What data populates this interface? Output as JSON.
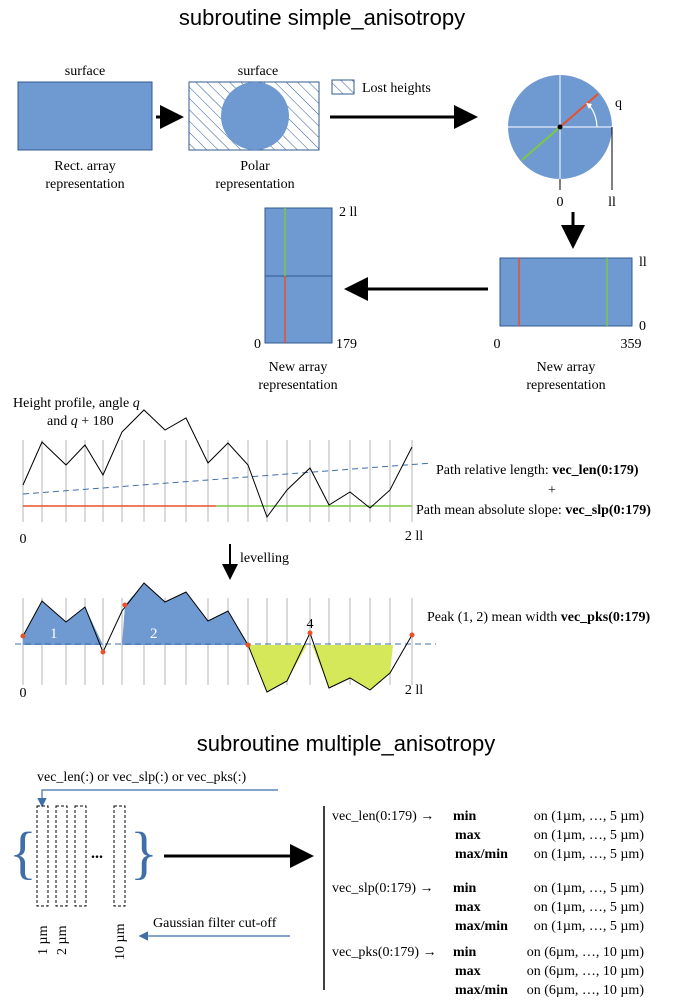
{
  "top_title": "subroutine simple_anisotropy",
  "surface_label_1": "surface",
  "surface_label_2": "surface",
  "rect_array_caption": [
    "Rect. array",
    "representation"
  ],
  "polar_caption": [
    "Polar",
    "representation"
  ],
  "lost_heights_label": "Lost heights",
  "circle": {
    "angle_label": "q",
    "zero_label": "0",
    "ll_label": "ll"
  },
  "new_array_left": {
    "top_label": "2 ll",
    "bottom_label": "0",
    "right_label": "179",
    "caption": [
      "New array",
      "representation"
    ]
  },
  "new_array_right": {
    "top_label": "ll",
    "bottom_label": "0",
    "left_label": "0",
    "right_label": "359",
    "caption": [
      "New array",
      "representation"
    ]
  },
  "profile": {
    "caption_line1": "Height profile, angle",
    "caption_q1": "q",
    "caption_and": "and",
    "caption_q2": "q",
    "caption_plus": "+ 180",
    "x_start": "0",
    "x_end": "2 ll",
    "path_len_label": "Path relative length:",
    "path_len_code": "vec_len(0:179)",
    "plus_sign": "+",
    "path_slp_label": "Path mean absolute slope:",
    "path_slp_code": "vec_slp(0:179)"
  },
  "levelling_label": "levelling",
  "peaks": {
    "peak_1": "1",
    "peak_2": "2",
    "valley_4": "4",
    "x_start": "0",
    "x_end": "2 ll",
    "width_label": "Peak (1, 2) mean width",
    "width_code": "vec_pks(0:179)"
  },
  "bottom_title": "subroutine multiple_anisotropy",
  "input_label": "vec_len(:) or vec_slp(:) or vec_pks(:)",
  "ellipsis": "...",
  "cutoff_label": "Gaussian filter cut-off",
  "scale_labels": [
    "1 µm",
    "2 µm",
    "10 µm"
  ],
  "results": [
    {
      "vector": "vec_len(0:179) →",
      "rows": [
        {
          "stat": "min",
          "range": "on (1µm, …, 5 µm)"
        },
        {
          "stat": "max",
          "range": "on (1µm, …, 5 µm)"
        },
        {
          "stat": "max/min",
          "range": "on (1µm, …, 5 µm)"
        }
      ]
    },
    {
      "vector": "vec_slp(0:179) →",
      "rows": [
        {
          "stat": "min",
          "range": "on (1µm, …, 5 µm)"
        },
        {
          "stat": "max",
          "range": "on (1µm, …, 5 µm)"
        },
        {
          "stat": "max/min",
          "range": "on (1µm, …, 5 µm)"
        }
      ]
    },
    {
      "vector": "vec_pks(0:179) →",
      "rows": [
        {
          "stat": "min",
          "range": "on (6µm, …, 10 µm)"
        },
        {
          "stat": "max",
          "range": "on (6µm, …, 10 µm)"
        },
        {
          "stat": "max/min",
          "range": "on (6µm, …, 10 µm)"
        }
      ]
    }
  ],
  "colors": {
    "surface_blue": "#6f9ad1",
    "red_line": "#e8502a",
    "green_line": "#7ac943",
    "valley_fill": "#d4e85a",
    "dashed_line": "#3f6ea8"
  }
}
